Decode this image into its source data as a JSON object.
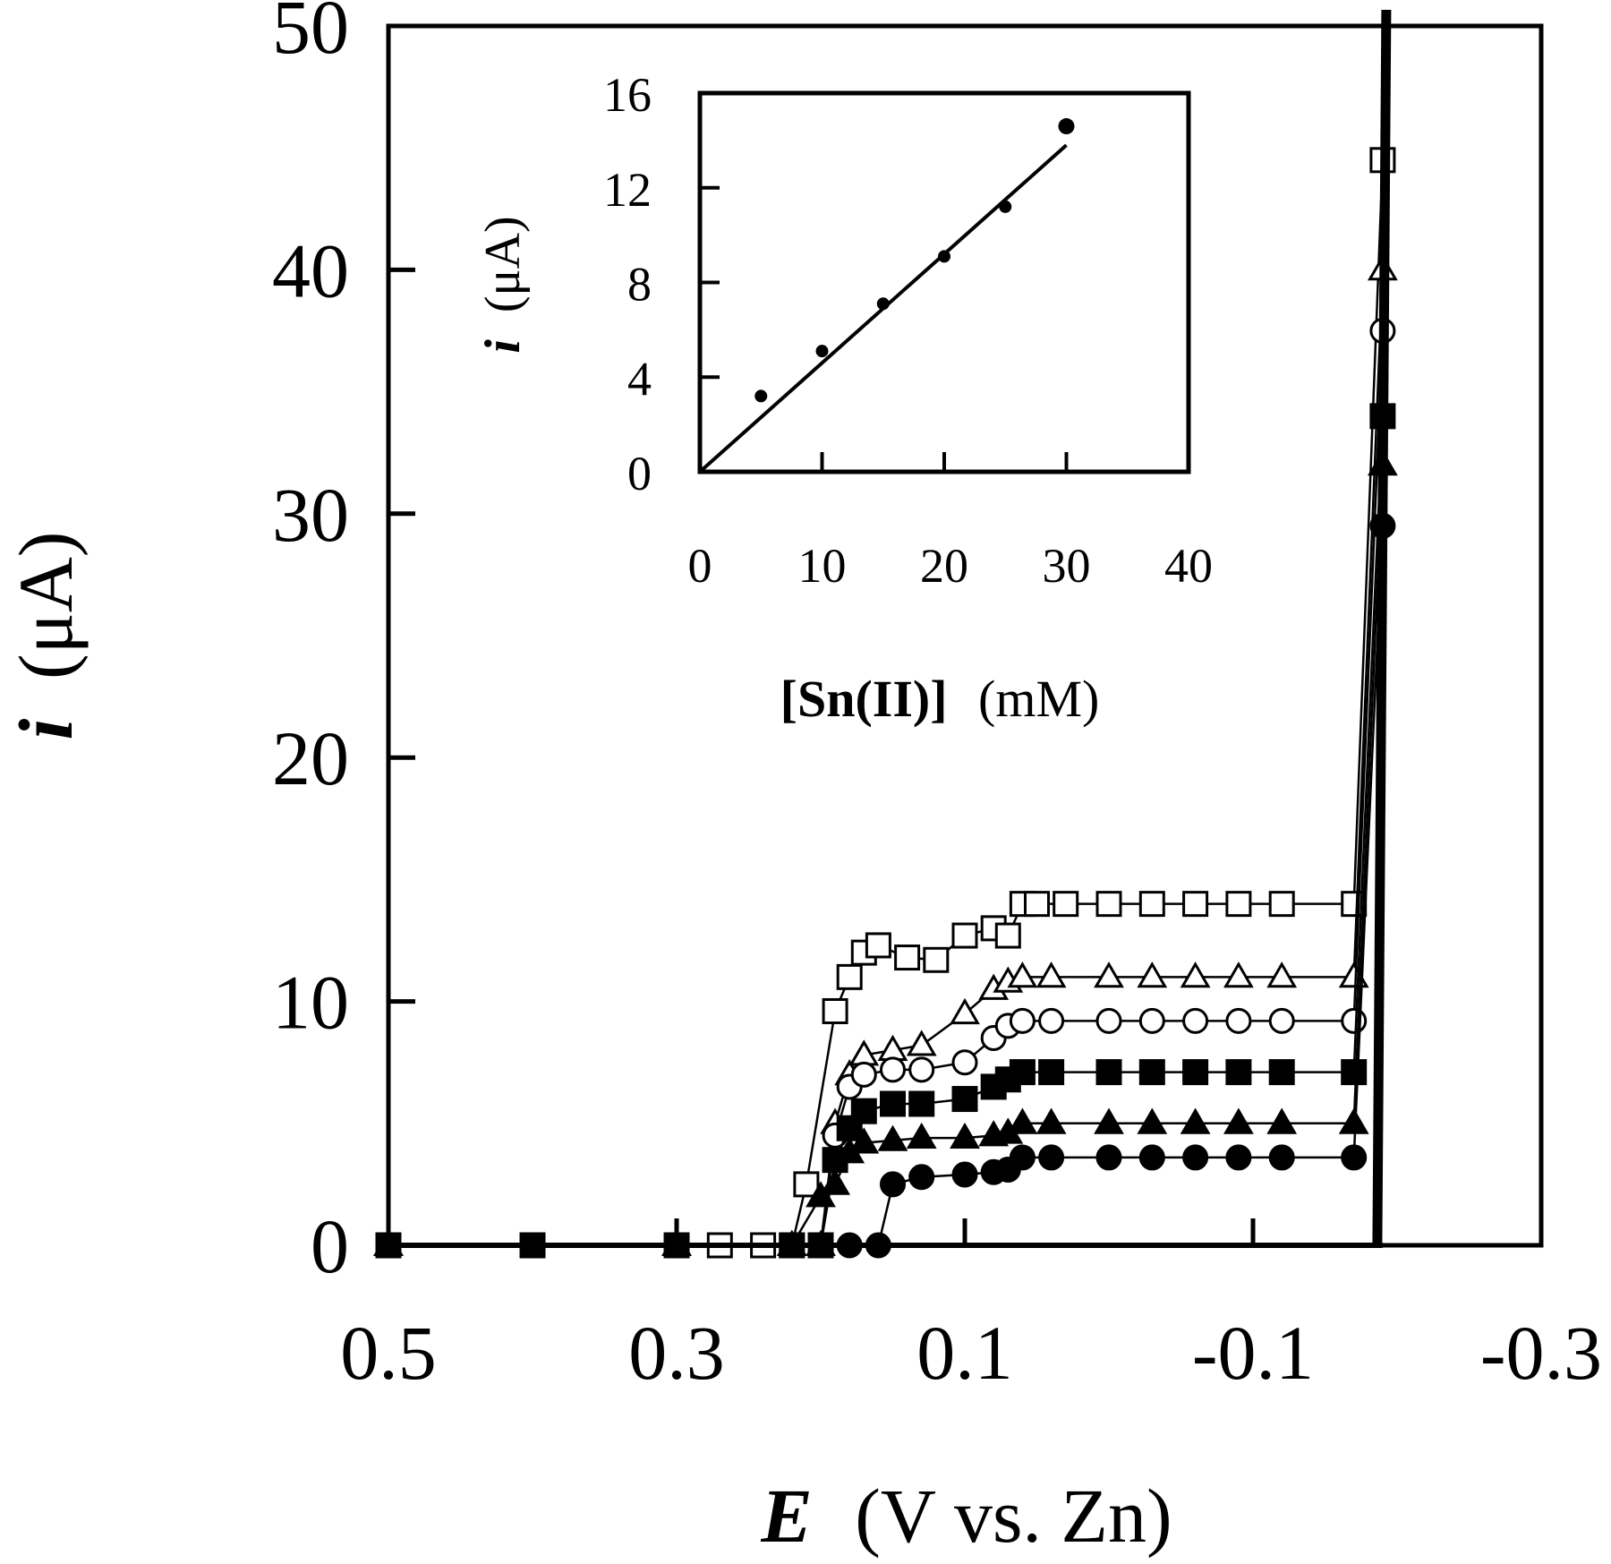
{
  "chart_data": [
    {
      "type": "scatter",
      "title": "",
      "xlabel": "E (V vs. Zn)",
      "xlabel_italic_part": "E",
      "xlabel_rest": "(V vs. Zn)",
      "ylabel": "i (μA)",
      "ylabel_italic_part": "i",
      "ylabel_rest": "(μA)",
      "xlim": [
        0.5,
        -0.3
      ],
      "ylim": [
        0,
        50
      ],
      "x_ticks": [
        0.5,
        0.3,
        0.1,
        -0.1,
        -0.3
      ],
      "x_tick_labels": [
        "0.5",
        "0.3",
        "0.1",
        "-0.1",
        "-0.3"
      ],
      "y_ticks": [
        0,
        10,
        20,
        30,
        40,
        50
      ],
      "y_tick_labels": [
        "0",
        "10",
        "20",
        "30",
        "40",
        "50"
      ],
      "grid": false,
      "legend": null,
      "series": [
        {
          "name": "open-square",
          "marker": "square",
          "filled": false,
          "plateau": 14.0,
          "points": [
            [
              0.5,
              0
            ],
            [
              0.4,
              0
            ],
            [
              0.3,
              0
            ],
            [
              0.27,
              0
            ],
            [
              0.24,
              0
            ],
            [
              0.22,
              0
            ],
            [
              0.21,
              2.5
            ],
            [
              0.19,
              9.6
            ],
            [
              0.18,
              11.0
            ],
            [
              0.17,
              12.0
            ],
            [
              0.16,
              12.3
            ],
            [
              0.14,
              11.8
            ],
            [
              0.12,
              11.7
            ],
            [
              0.1,
              12.7
            ],
            [
              0.08,
              13.0
            ],
            [
              0.07,
              12.7
            ],
            [
              0.06,
              14.0
            ],
            [
              0.05,
              14.0
            ],
            [
              0.03,
              14.0
            ],
            [
              0.0,
              14.0
            ],
            [
              -0.03,
              14.0
            ],
            [
              -0.06,
              14.0
            ],
            [
              -0.09,
              14.0
            ],
            [
              -0.12,
              14.0
            ],
            [
              -0.17,
              14.0
            ],
            [
              -0.19,
              44.5
            ]
          ]
        },
        {
          "name": "open-triangle",
          "marker": "triangle",
          "filled": false,
          "plateau": 11.0,
          "points": [
            [
              0.5,
              0
            ],
            [
              0.3,
              0
            ],
            [
              0.22,
              0
            ],
            [
              0.2,
              0
            ],
            [
              0.19,
              5.0
            ],
            [
              0.18,
              7.0
            ],
            [
              0.17,
              7.8
            ],
            [
              0.15,
              8.0
            ],
            [
              0.13,
              8.2
            ],
            [
              0.1,
              9.5
            ],
            [
              0.08,
              10.5
            ],
            [
              0.07,
              10.8
            ],
            [
              0.06,
              11.0
            ],
            [
              0.04,
              11.0
            ],
            [
              0.0,
              11.0
            ],
            [
              -0.03,
              11.0
            ],
            [
              -0.06,
              11.0
            ],
            [
              -0.09,
              11.0
            ],
            [
              -0.12,
              11.0
            ],
            [
              -0.17,
              11.0
            ],
            [
              -0.19,
              40.0
            ]
          ]
        },
        {
          "name": "open-circle",
          "marker": "circle",
          "filled": false,
          "plateau": 9.2,
          "points": [
            [
              0.5,
              0
            ],
            [
              0.3,
              0
            ],
            [
              0.22,
              0
            ],
            [
              0.2,
              0
            ],
            [
              0.19,
              4.5
            ],
            [
              0.18,
              6.5
            ],
            [
              0.17,
              7.0
            ],
            [
              0.15,
              7.2
            ],
            [
              0.13,
              7.2
            ],
            [
              0.1,
              7.5
            ],
            [
              0.08,
              8.5
            ],
            [
              0.07,
              9.0
            ],
            [
              0.06,
              9.2
            ],
            [
              0.04,
              9.2
            ],
            [
              0.0,
              9.2
            ],
            [
              -0.03,
              9.2
            ],
            [
              -0.06,
              9.2
            ],
            [
              -0.09,
              9.2
            ],
            [
              -0.12,
              9.2
            ],
            [
              -0.17,
              9.2
            ],
            [
              -0.19,
              37.5
            ]
          ]
        },
        {
          "name": "filled-square",
          "marker": "square",
          "filled": true,
          "plateau": 7.1,
          "points": [
            [
              0.5,
              0
            ],
            [
              0.4,
              0
            ],
            [
              0.3,
              0
            ],
            [
              0.22,
              0
            ],
            [
              0.2,
              0
            ],
            [
              0.19,
              3.5
            ],
            [
              0.18,
              4.8
            ],
            [
              0.17,
              5.5
            ],
            [
              0.15,
              5.8
            ],
            [
              0.13,
              5.8
            ],
            [
              0.1,
              6.0
            ],
            [
              0.08,
              6.5
            ],
            [
              0.07,
              6.8
            ],
            [
              0.06,
              7.1
            ],
            [
              0.04,
              7.1
            ],
            [
              0.0,
              7.1
            ],
            [
              -0.03,
              7.1
            ],
            [
              -0.06,
              7.1
            ],
            [
              -0.09,
              7.1
            ],
            [
              -0.12,
              7.1
            ],
            [
              -0.17,
              7.1
            ],
            [
              -0.19,
              34.0
            ]
          ]
        },
        {
          "name": "filled-triangle",
          "marker": "triangle",
          "filled": true,
          "plateau": 5.0,
          "points": [
            [
              0.5,
              0
            ],
            [
              0.3,
              0
            ],
            [
              0.22,
              0
            ],
            [
              0.2,
              2.0
            ],
            [
              0.19,
              2.5
            ],
            [
              0.18,
              3.8
            ],
            [
              0.17,
              4.2
            ],
            [
              0.15,
              4.3
            ],
            [
              0.13,
              4.4
            ],
            [
              0.1,
              4.4
            ],
            [
              0.08,
              4.5
            ],
            [
              0.07,
              4.6
            ],
            [
              0.06,
              5.0
            ],
            [
              0.04,
              5.0
            ],
            [
              0.0,
              5.0
            ],
            [
              -0.03,
              5.0
            ],
            [
              -0.06,
              5.0
            ],
            [
              -0.09,
              5.0
            ],
            [
              -0.12,
              5.0
            ],
            [
              -0.17,
              5.0
            ],
            [
              -0.19,
              32.0
            ]
          ]
        },
        {
          "name": "filled-circle",
          "marker": "circle",
          "filled": true,
          "plateau": 3.6,
          "points": [
            [
              0.5,
              0
            ],
            [
              0.3,
              0
            ],
            [
              0.22,
              0
            ],
            [
              0.2,
              0
            ],
            [
              0.18,
              0
            ],
            [
              0.16,
              0
            ],
            [
              0.15,
              2.5
            ],
            [
              0.13,
              2.8
            ],
            [
              0.1,
              2.9
            ],
            [
              0.08,
              3.0
            ],
            [
              0.07,
              3.1
            ],
            [
              0.06,
              3.6
            ],
            [
              0.04,
              3.6
            ],
            [
              0.0,
              3.6
            ],
            [
              -0.03,
              3.6
            ],
            [
              -0.06,
              3.6
            ],
            [
              -0.09,
              3.6
            ],
            [
              -0.12,
              3.6
            ],
            [
              -0.17,
              3.6
            ],
            [
              -0.19,
              29.5
            ]
          ]
        }
      ],
      "steep_rise": {
        "x": -0.19,
        "y_from": 0,
        "y_to": 50
      }
    },
    {
      "type": "scatter",
      "title": "inset",
      "xlabel": "[Sn(II)]  (mM)",
      "xlabel_bold_part": "[Sn(II)]",
      "xlabel_rest": "(mM)",
      "ylabel": "i (μA)",
      "ylabel_italic_part": "i",
      "ylabel_rest": "(μA)",
      "xlim": [
        0,
        40
      ],
      "ylim": [
        0,
        16
      ],
      "x_ticks": [
        0,
        10,
        20,
        30,
        40
      ],
      "x_tick_labels": [
        "0",
        "10",
        "20",
        "30",
        "40"
      ],
      "y_ticks": [
        0,
        4,
        8,
        12,
        16
      ],
      "y_tick_labels": [
        "0",
        "4",
        "8",
        "12",
        "16"
      ],
      "grid": false,
      "x": [
        5,
        10,
        15,
        20,
        25,
        30
      ],
      "y": [
        3.2,
        5.1,
        7.1,
        9.1,
        11.2,
        14.6
      ],
      "fit_line": {
        "x": [
          0,
          30
        ],
        "y": [
          0,
          13.8
        ]
      }
    }
  ]
}
